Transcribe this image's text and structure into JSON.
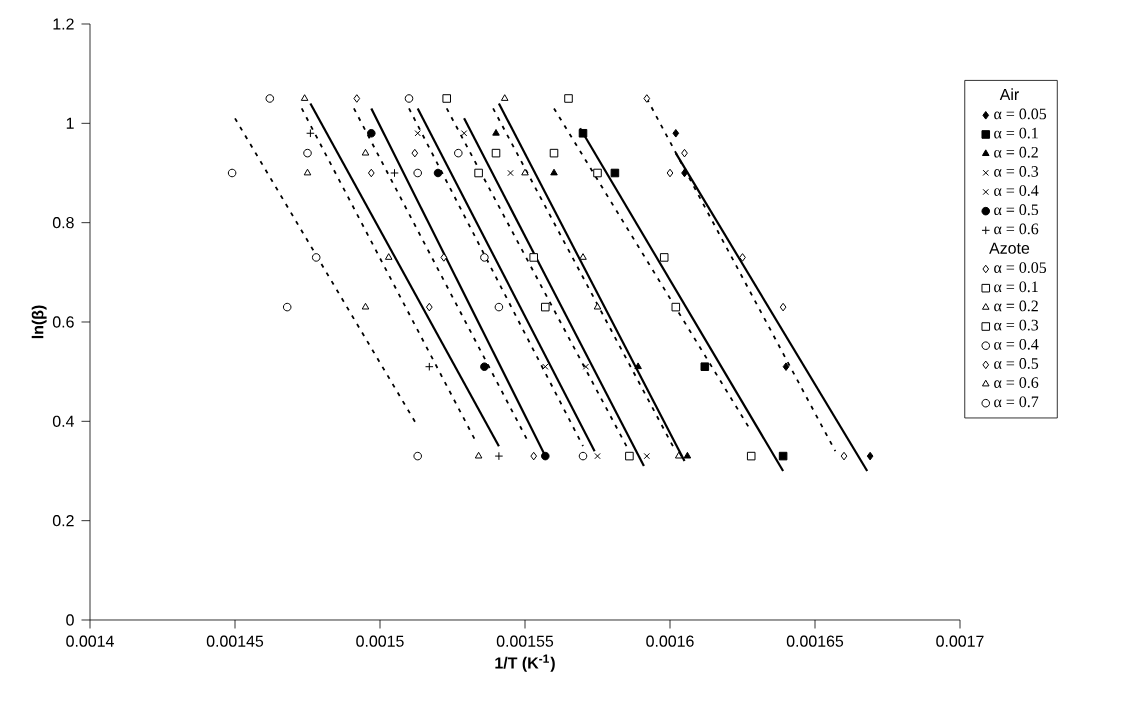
{
  "chart_data": {
    "type": "scatter",
    "xlabel": "1/T  (K$^{-1}$)",
    "ylabel": "ln(β)",
    "xlim": [
      0.0014,
      0.0017
    ],
    "xticks": [
      0.0014,
      0.00145,
      0.0015,
      0.00155,
      0.0016,
      0.00165,
      0.0017
    ],
    "ylim": [
      0,
      1.2
    ],
    "yticks": [
      0,
      0.2,
      0.4,
      0.6,
      0.8,
      1,
      1.2
    ],
    "grid": false,
    "legend": "right",
    "legend_title": "Air",
    "annotations": [
      "Azote"
    ],
    "series": [
      {
        "name": "α = 0.05",
        "color": "#000000",
        "marker": "diamond",
        "x": [
          0.001602,
          0.001605,
          0.00164,
          0.001669
        ],
        "values": [
          0.98,
          0.9,
          0.51,
          0.33
        ]
      },
      {
        "name": "α = 0.1",
        "color": "#000000",
        "marker": "square",
        "x": [
          0.00157,
          0.001581,
          0.001612,
          0.001639
        ],
        "values": [
          0.98,
          0.9,
          0.51,
          0.33
        ]
      },
      {
        "name": "α = 0.2",
        "color": "#000000",
        "marker": "triangle",
        "x": [
          0.00154,
          0.00156,
          0.001589,
          0.001606
        ],
        "values": [
          0.98,
          0.9,
          0.51,
          0.33
        ]
      },
      {
        "name": "α = 0.3",
        "color": "#000000",
        "marker": "cross",
        "x": [
          0.001529,
          0.001545,
          0.001571,
          0.001592
        ],
        "values": [
          0.98,
          0.9,
          0.51,
          0.33
        ]
      },
      {
        "name": "α = 0.4",
        "color": "#000000",
        "marker": "cross",
        "x": [
          0.001513,
          0.001557,
          0.001575
        ],
        "values": [
          0.98,
          0.51,
          0.33
        ]
      },
      {
        "name": "α = 0.5",
        "color": "#000000",
        "marker": "circle",
        "x": [
          0.001497,
          0.00152,
          0.001536,
          0.001557
        ],
        "values": [
          0.98,
          0.9,
          0.51,
          0.33
        ]
      },
      {
        "name": "α = 0.6",
        "color": "#000000",
        "marker": "plus",
        "x": [
          0.001476,
          0.001505,
          0.001517,
          0.001541
        ],
        "values": [
          0.98,
          0.9,
          0.51,
          0.33
        ]
      },
      {
        "name": "α = 0.05",
        "color": "#000000",
        "marker": "diamond",
        "x": [
          0.001592,
          0.001605,
          0.0016,
          0.001625,
          0.001639,
          0.00166
        ],
        "values": [
          1.05,
          0.94,
          0.9,
          0.73,
          0.63,
          0.33
        ]
      },
      {
        "name": "α = 0.1",
        "color": "#000000",
        "marker": "square",
        "x": [
          0.001565,
          0.00156,
          0.001575,
          0.001598,
          0.001602,
          0.001628
        ],
        "values": [
          1.05,
          0.94,
          0.9,
          0.73,
          0.63,
          0.33
        ]
      },
      {
        "name": "α = 0.2",
        "color": "#000000",
        "marker": "triangle",
        "x": [
          0.001543,
          0.00155,
          0.00157,
          0.001575,
          0.001603
        ],
        "values": [
          1.05,
          0.9,
          0.73,
          0.63,
          0.33
        ]
      },
      {
        "name": "α = 0.3",
        "color": "#000000",
        "marker": "square",
        "x": [
          0.001523,
          0.00154,
          0.001534,
          0.001553,
          0.001557,
          0.001586
        ],
        "values": [
          1.05,
          0.94,
          0.9,
          0.73,
          0.63,
          0.33
        ]
      },
      {
        "name": "α = 0.4",
        "color": "#000000",
        "marker": "circle",
        "x": [
          0.00151,
          0.001527,
          0.001513,
          0.001536,
          0.001541,
          0.00157
        ],
        "values": [
          1.05,
          0.94,
          0.9,
          0.73,
          0.63,
          0.33
        ]
      },
      {
        "name": "α = 0.5",
        "color": "#000000",
        "marker": "diamond",
        "x": [
          0.001492,
          0.001512,
          0.001497,
          0.001522,
          0.001517,
          0.001553
        ],
        "values": [
          1.05,
          0.94,
          0.9,
          0.73,
          0.63,
          0.33
        ]
      },
      {
        "name": "α = 0.6",
        "color": "#000000",
        "marker": "triangle",
        "x": [
          0.001474,
          0.001495,
          0.001475,
          0.001503,
          0.001495,
          0.001534
        ],
        "values": [
          1.05,
          0.94,
          0.9,
          0.73,
          0.63,
          0.33
        ]
      },
      {
        "name": "α = 0.7",
        "color": "#000000",
        "marker": "circle",
        "x": [
          0.001462,
          0.001475,
          0.001449,
          0.001478,
          0.001468,
          0.001513
        ],
        "values": [
          1.05,
          0.94,
          0.9,
          0.73,
          0.63,
          0.33
        ]
      },
      {
        "type": "line",
        "line_style": "solid",
        "marker": "none",
        "color": "#000000",
        "x": [
          0.001602,
          0.001668
        ],
        "values": [
          0.94,
          0.3
        ]
      },
      {
        "type": "line",
        "line_style": "solid",
        "marker": "none",
        "color": "#000000",
        "x": [
          0.001569,
          0.001639
        ],
        "values": [
          0.99,
          0.3
        ]
      },
      {
        "type": "line",
        "line_style": "solid",
        "marker": "none",
        "color": "#000000",
        "x": [
          0.001541,
          0.001605
        ],
        "values": [
          1.04,
          0.32
        ]
      },
      {
        "type": "line",
        "line_style": "solid",
        "marker": "none",
        "color": "#000000",
        "x": [
          0.001529,
          0.001591
        ],
        "values": [
          1.01,
          0.31
        ]
      },
      {
        "type": "line",
        "line_style": "solid",
        "marker": "none",
        "color": "#000000",
        "x": [
          0.001513,
          0.001574
        ],
        "values": [
          1.03,
          0.34
        ]
      },
      {
        "type": "line",
        "line_style": "solid",
        "marker": "none",
        "color": "#000000",
        "x": [
          0.001497,
          0.001557
        ],
        "values": [
          1.03,
          0.33
        ]
      },
      {
        "type": "line",
        "line_style": "solid",
        "marker": "none",
        "color": "#000000",
        "x": [
          0.001476,
          0.001541
        ],
        "values": [
          1.04,
          0.35
        ]
      },
      {
        "type": "line",
        "line_style": "dashed",
        "marker": "none",
        "color": "#000000",
        "x": [
          0.001592,
          0.001657
        ],
        "values": [
          1.05,
          0.34
        ]
      },
      {
        "type": "line",
        "line_style": "dashed",
        "marker": "none",
        "color": "#000000",
        "x": [
          0.00156,
          0.001628
        ],
        "values": [
          1.03,
          0.38
        ]
      },
      {
        "type": "line",
        "line_style": "dashed",
        "marker": "none",
        "color": "#000000",
        "x": [
          0.001539,
          0.001601
        ],
        "values": [
          1.03,
          0.35
        ]
      },
      {
        "type": "line",
        "line_style": "dashed",
        "marker": "none",
        "color": "#000000",
        "x": [
          0.001523,
          0.001585
        ],
        "values": [
          1.03,
          0.35
        ]
      },
      {
        "type": "line",
        "line_style": "dashed",
        "marker": "none",
        "color": "#000000",
        "x": [
          0.00151,
          0.00157
        ],
        "values": [
          1.03,
          0.35
        ]
      },
      {
        "type": "line",
        "line_style": "dashed",
        "marker": "none",
        "color": "#000000",
        "x": [
          0.001491,
          0.001551
        ],
        "values": [
          1.03,
          0.36
        ]
      },
      {
        "type": "line",
        "line_style": "dashed",
        "marker": "none",
        "color": "#000000",
        "x": [
          0.001473,
          0.001533
        ],
        "values": [
          1.03,
          0.36
        ]
      },
      {
        "type": "line",
        "line_style": "dashed",
        "marker": "none",
        "color": "#000000",
        "x": [
          0.00145,
          0.001513
        ],
        "values": [
          1.01,
          0.39
        ]
      }
    ]
  }
}
